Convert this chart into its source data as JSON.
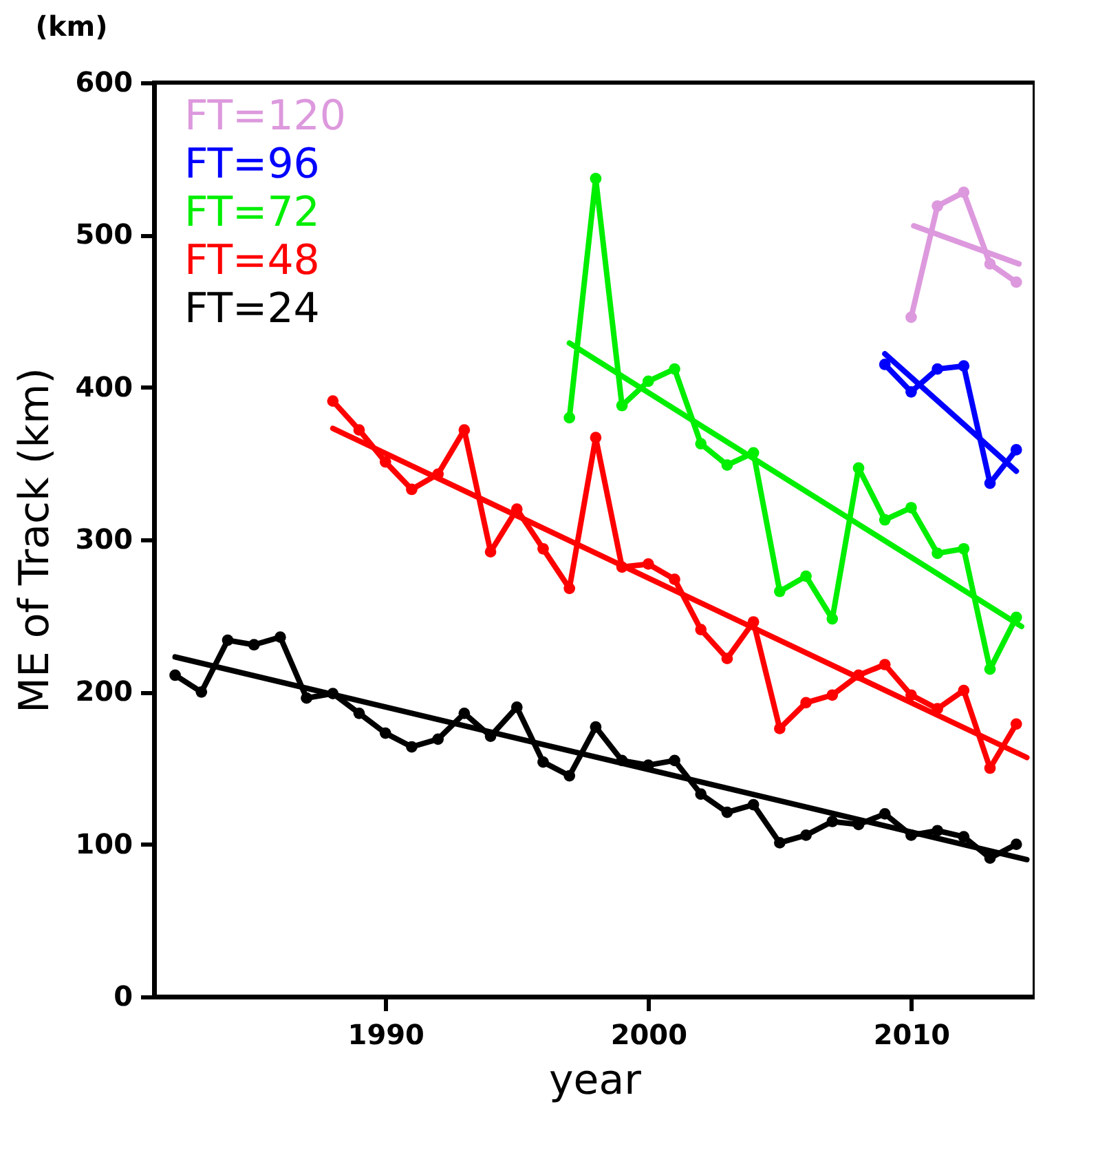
{
  "chart_data": {
    "type": "line",
    "xlabel": "year",
    "ylabel": "ME of Track (km)",
    "annotations": [
      "(km)"
    ],
    "xlim": [
      1981.2,
      2014.7
    ],
    "xticks": [
      1990,
      2000,
      2010
    ],
    "ylim": [
      0,
      600
    ],
    "yticks": [
      0,
      100,
      200,
      300,
      400,
      500,
      600
    ],
    "grid": false,
    "legend": "top left",
    "marker": "circle",
    "line_style": "solid",
    "series": [
      {
        "name": "FT=120",
        "color": "#dd99dd",
        "x": [
          2010,
          2011,
          2012,
          2013,
          2014
        ],
        "values": [
          446,
          519,
          528,
          481,
          469
        ]
      },
      {
        "name": "FT=96",
        "color": "#0000ff",
        "x": [
          2009,
          2010,
          2011,
          2012,
          2013,
          2014
        ],
        "values": [
          415,
          397,
          412,
          414,
          337,
          359
        ]
      },
      {
        "name": "FT=72",
        "color": "#00ee00",
        "x": [
          1997,
          1998,
          1999,
          2000,
          2001,
          2002,
          2003,
          2004,
          2005,
          2006,
          2007,
          2008,
          2009,
          2010,
          2011,
          2012,
          2013,
          2014
        ],
        "values": [
          380,
          537,
          388,
          404,
          412,
          363,
          349,
          357,
          266,
          276,
          248,
          347,
          313,
          321,
          291,
          294,
          215,
          249
        ]
      },
      {
        "name": "FT=48",
        "color": "#ff0000",
        "x": [
          1988,
          1989,
          1990,
          1991,
          1992,
          1993,
          1994,
          1995,
          1996,
          1997,
          1998,
          1999,
          2000,
          2001,
          2002,
          2003,
          2004,
          2005,
          2006,
          2007,
          2008,
          2009,
          2010,
          2011,
          2012,
          2013,
          2014
        ],
        "values": [
          391,
          372,
          351,
          333,
          343,
          372,
          292,
          320,
          294,
          268,
          367,
          282,
          284,
          274,
          241,
          222,
          246,
          176,
          193,
          198,
          211,
          218,
          198,
          189,
          201,
          150,
          179
        ]
      },
      {
        "name": "FT=24",
        "color": "#000000",
        "x": [
          1982,
          1983,
          1984,
          1985,
          1986,
          1987,
          1988,
          1989,
          1990,
          1991,
          1992,
          1993,
          1994,
          1995,
          1996,
          1997,
          1998,
          1999,
          2000,
          2001,
          2002,
          2003,
          2004,
          2005,
          2006,
          2007,
          2008,
          2009,
          2010,
          2011,
          2012,
          2013,
          2014
        ],
        "values": [
          211,
          200,
          234,
          231,
          236,
          196,
          199,
          186,
          173,
          164,
          169,
          186,
          171,
          190,
          154,
          145,
          177,
          155,
          152,
          155,
          133,
          121,
          126,
          101,
          106,
          115,
          113,
          120,
          106,
          109,
          105,
          91,
          100
        ]
      },
      {
        "type": "line",
        "marker": "none",
        "color": "#dd99dd",
        "x": [
          2010.1,
          2014.1
        ],
        "values": [
          506,
          481
        ]
      },
      {
        "type": "line",
        "marker": "none",
        "color": "#0000ff",
        "x": [
          2009,
          2014
        ],
        "values": [
          422,
          345
        ]
      },
      {
        "type": "line",
        "marker": "none",
        "color": "#00ee00",
        "x": [
          1997,
          2014.2
        ],
        "values": [
          429,
          243
        ]
      },
      {
        "type": "line",
        "marker": "none",
        "color": "#ff0000",
        "x": [
          1988,
          2014.4
        ],
        "values": [
          373,
          157
        ]
      },
      {
        "type": "line",
        "marker": "none",
        "color": "#000000",
        "x": [
          1982,
          2014.4
        ],
        "values": [
          223,
          90
        ]
      }
    ]
  }
}
